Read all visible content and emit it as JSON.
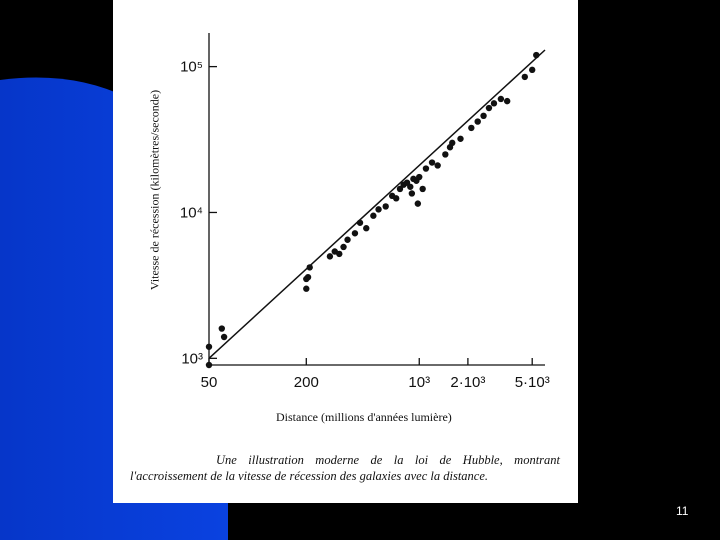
{
  "slide": {
    "number": "11"
  },
  "colors": {
    "blue": "#0a3fd6",
    "dark": "#000000",
    "paper": "#ffffff",
    "ink": "#111111"
  },
  "chart_data": {
    "type": "scatter",
    "ylabel": "Vitesse de récession (kilomètres/seconde)",
    "xlabel": "Distance (millions d'années lumière)",
    "x_scale": "log",
    "y_scale": "log",
    "x_tick_labels": [
      "50",
      "200",
      "10³",
      "2·10³",
      "5·10³"
    ],
    "y_tick_labels": [
      "10³",
      "10⁴",
      "10⁵"
    ],
    "xlim": [
      50,
      6000
    ],
    "ylim": [
      900,
      170000
    ],
    "points": [
      {
        "x": 50,
        "y": 900
      },
      {
        "x": 50,
        "y": 1200
      },
      {
        "x": 60,
        "y": 1600
      },
      {
        "x": 62,
        "y": 1400
      },
      {
        "x": 200,
        "y": 3000
      },
      {
        "x": 200,
        "y": 3500
      },
      {
        "x": 210,
        "y": 4200
      },
      {
        "x": 205,
        "y": 3600
      },
      {
        "x": 280,
        "y": 5000
      },
      {
        "x": 300,
        "y": 5400
      },
      {
        "x": 320,
        "y": 5200
      },
      {
        "x": 340,
        "y": 5800
      },
      {
        "x": 360,
        "y": 6500
      },
      {
        "x": 400,
        "y": 7200
      },
      {
        "x": 430,
        "y": 8500
      },
      {
        "x": 470,
        "y": 7800
      },
      {
        "x": 520,
        "y": 9500
      },
      {
        "x": 560,
        "y": 10500
      },
      {
        "x": 620,
        "y": 11000
      },
      {
        "x": 680,
        "y": 13000
      },
      {
        "x": 720,
        "y": 12500
      },
      {
        "x": 760,
        "y": 14500
      },
      {
        "x": 800,
        "y": 15500
      },
      {
        "x": 840,
        "y": 16000
      },
      {
        "x": 880,
        "y": 15000
      },
      {
        "x": 900,
        "y": 13500
      },
      {
        "x": 920,
        "y": 17000
      },
      {
        "x": 960,
        "y": 16500
      },
      {
        "x": 1000,
        "y": 17500
      },
      {
        "x": 1050,
        "y": 14500
      },
      {
        "x": 980,
        "y": 11500
      },
      {
        "x": 1100,
        "y": 20000
      },
      {
        "x": 1200,
        "y": 22000
      },
      {
        "x": 1300,
        "y": 21000
      },
      {
        "x": 1450,
        "y": 25000
      },
      {
        "x": 1550,
        "y": 28000
      },
      {
        "x": 1600,
        "y": 30000
      },
      {
        "x": 1800,
        "y": 32000
      },
      {
        "x": 2100,
        "y": 38000
      },
      {
        "x": 2300,
        "y": 42000
      },
      {
        "x": 2500,
        "y": 46000
      },
      {
        "x": 2700,
        "y": 52000
      },
      {
        "x": 2900,
        "y": 56000
      },
      {
        "x": 3200,
        "y": 60000
      },
      {
        "x": 3500,
        "y": 58000
      },
      {
        "x": 4500,
        "y": 85000
      },
      {
        "x": 5000,
        "y": 95000
      },
      {
        "x": 5300,
        "y": 120000
      }
    ],
    "fit_line": {
      "x": [
        50,
        6000
      ],
      "y": [
        1000,
        130000
      ]
    },
    "caption": [
      "Une illustration moderne de la loi de Hubble, montrant",
      "l'accroissement de la vitesse de récession des galaxies avec la distance."
    ]
  }
}
